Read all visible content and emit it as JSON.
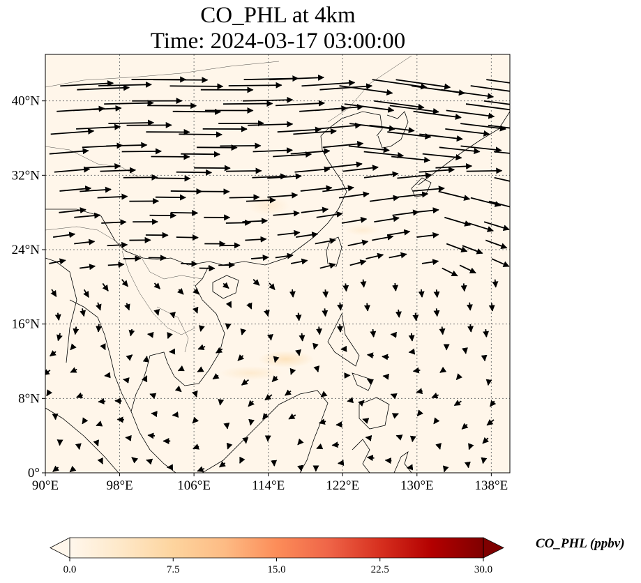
{
  "title": {
    "line1": "CO_PHL at 4km",
    "line2": "Time: 2024-03-17 03:00:00"
  },
  "map": {
    "projection": "PlateCarree",
    "lon_range": [
      90,
      140
    ],
    "lat_range": [
      0,
      45
    ],
    "background_color": "#fff6ea",
    "plume_color": "#fde3bd",
    "gridlines": "dotted",
    "lon_ticks": [
      90,
      98,
      106,
      114,
      122,
      130,
      138
    ],
    "lon_labels": [
      "90°E",
      "98°E",
      "106°E",
      "114°E",
      "122°E",
      "130°E",
      "138°E"
    ],
    "lat_ticks": [
      0,
      8,
      16,
      24,
      32,
      40
    ],
    "lat_labels": [
      "0°",
      "8°N",
      "16°N",
      "24°N",
      "32°N",
      "40°N"
    ]
  },
  "colorbar": {
    "label": "CO_PHL (ppbv)",
    "min": 0,
    "max": 30,
    "extend": "both",
    "cmap": "OrRd",
    "stops": [
      "#fff7ec",
      "#fee8c8",
      "#fdd49e",
      "#fdbb84",
      "#fc8d59",
      "#ef6548",
      "#d7301f",
      "#b30000",
      "#7f0000"
    ],
    "ticks": [
      0,
      7.5,
      15,
      22.5,
      30
    ],
    "tick_labels": [
      "0.0",
      "7.5",
      "15.0",
      "22.5",
      "30.0"
    ]
  }
}
